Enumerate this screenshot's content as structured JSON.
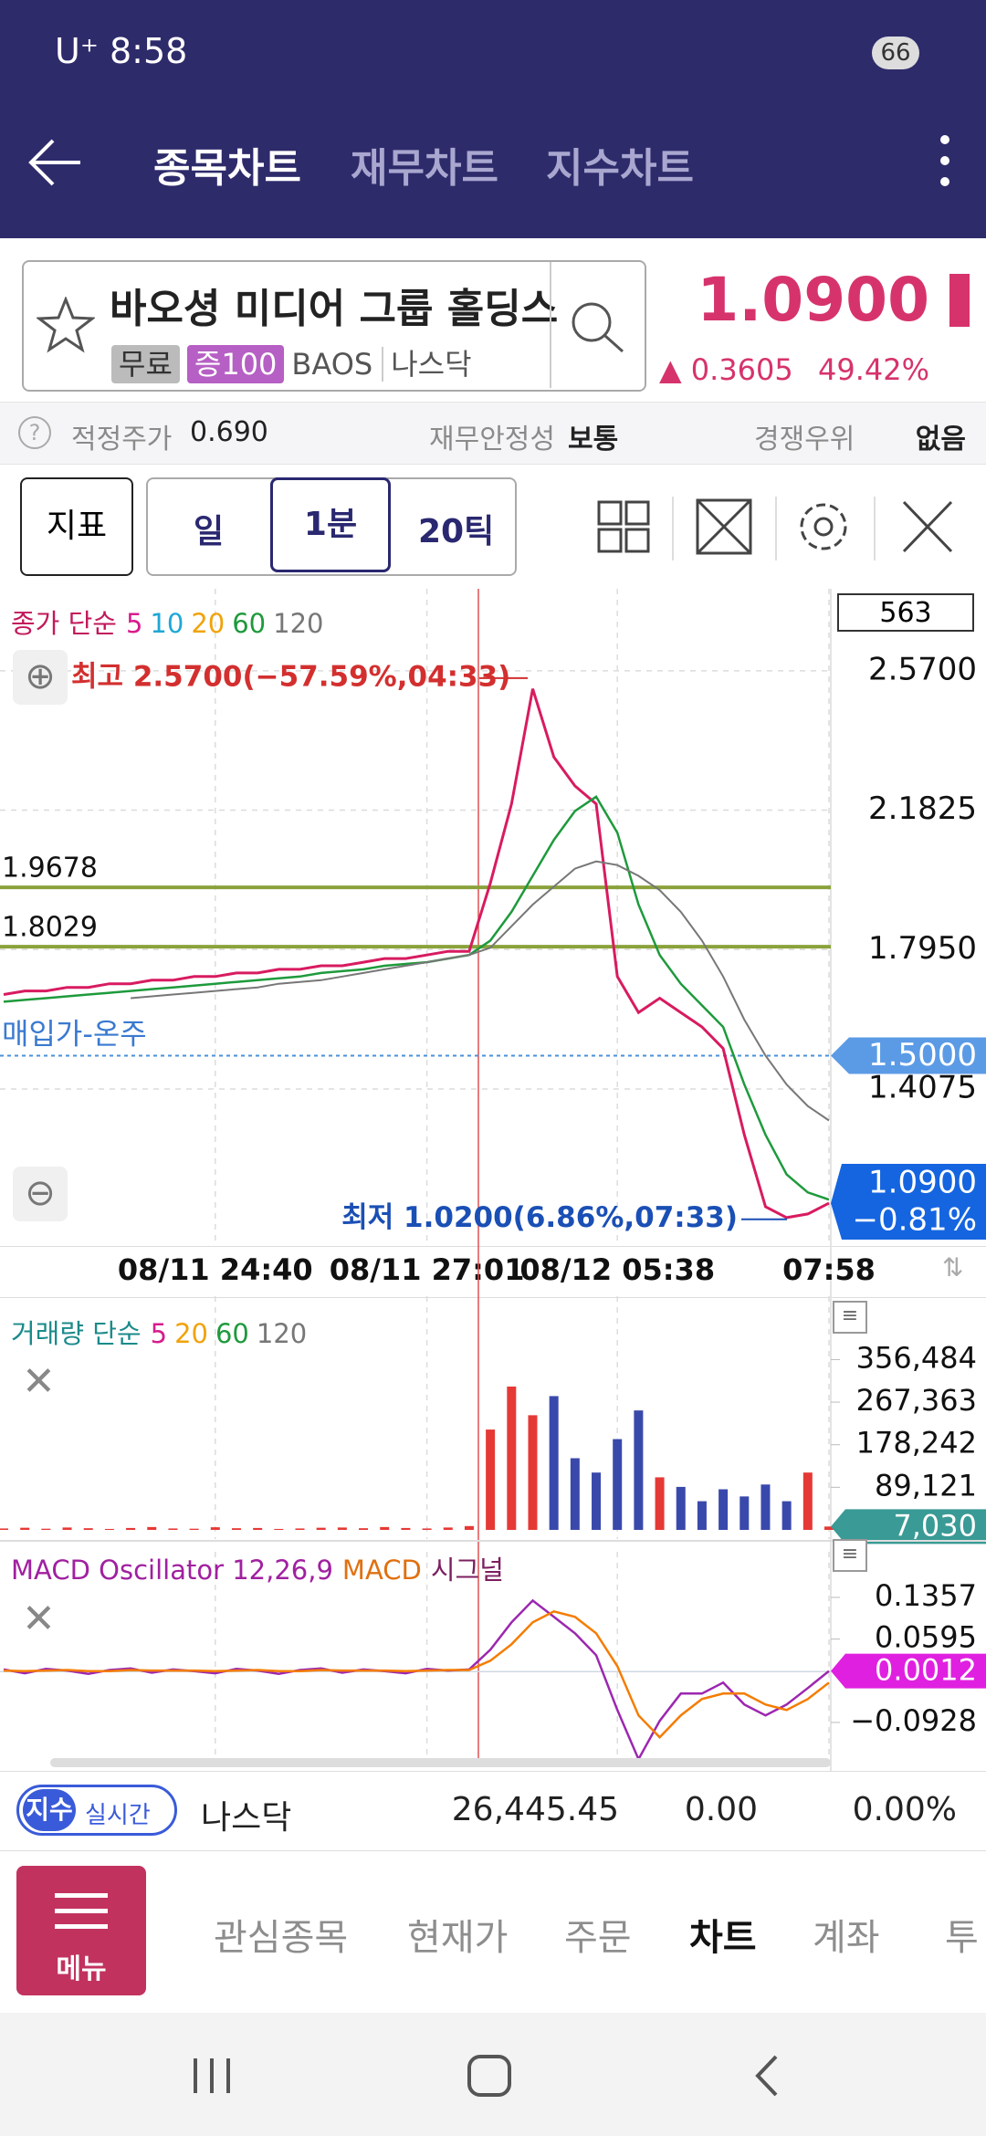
{
  "status_bar": {
    "carrier": "U⁺",
    "time": "8:58",
    "battery": "66"
  },
  "tabs": [
    "종목차트",
    "재무차트",
    "지수차트"
  ],
  "stock": {
    "name": "바오셩 미디어 그룹 홀딩스",
    "tags": [
      "무료",
      "증100"
    ],
    "ticker": "BAOS",
    "market": "나스닥",
    "price": "1.0900",
    "change": "0.3605",
    "change_percent": "49.42%"
  },
  "info": [
    {
      "label": "적정주가",
      "value": "0.690"
    },
    {
      "label": "재무안정성",
      "value": "보통"
    },
    {
      "label": "경쟁우위",
      "value": "없음"
    }
  ],
  "toolbar": {
    "indicator": "지표",
    "periods": [
      "일",
      "1분",
      "20틱"
    ]
  },
  "price_chart": {
    "type": "line",
    "legend_title": "종가 단순",
    "ma_periods": [
      {
        "label": "5",
        "color": "#d81b8c"
      },
      {
        "label": "10",
        "color": "#1ea7d6"
      },
      {
        "label": "20",
        "color": "#f0a30a"
      },
      {
        "label": "60",
        "color": "#1e9a3c"
      },
      {
        "label": "120",
        "color": "#777777"
      }
    ],
    "count_box": "563",
    "categories": [
      null,
      null,
      null,
      null,
      null,
      null,
      null,
      null,
      null,
      null,
      "08/11 24:40",
      null,
      null,
      null,
      null,
      null,
      null,
      null,
      null,
      null,
      "08/11 27:01",
      null,
      null,
      null,
      null,
      null,
      null,
      null,
      null,
      "08/12 05:38",
      null,
      null,
      null,
      null,
      null,
      null,
      null,
      null,
      null,
      "07:58"
    ],
    "ylim": [
      0.971,
      2.798
    ],
    "yticks": [
      {
        "value": 2.57,
        "label": "2.5700"
      },
      {
        "value": 2.1825,
        "label": "2.1825"
      },
      {
        "value": 1.795,
        "label": "1.7950"
      },
      {
        "value": 1.4075,
        "label": "1.4075"
      }
    ],
    "series": [
      {
        "color": "#d81b60",
        "values": [
          1.67,
          1.68,
          1.68,
          1.69,
          1.69,
          1.7,
          1.7,
          1.71,
          1.71,
          1.72,
          1.72,
          1.73,
          1.73,
          1.74,
          1.74,
          1.75,
          1.75,
          1.76,
          1.77,
          1.77,
          1.78,
          1.79,
          1.79,
          1.98,
          2.2,
          2.52,
          2.33,
          2.25,
          2.2,
          1.72,
          1.62,
          1.66,
          1.62,
          1.58,
          1.52,
          1.28,
          1.08,
          1.05,
          1.06,
          1.09
        ]
      },
      {
        "color": "#1e9a3c",
        "values": [
          1.65,
          1.655,
          1.66,
          1.665,
          1.67,
          1.675,
          1.68,
          1.685,
          1.69,
          1.695,
          1.7,
          1.705,
          1.71,
          1.715,
          1.72,
          1.73,
          1.735,
          1.74,
          1.75,
          1.755,
          1.76,
          1.77,
          1.78,
          1.82,
          1.9,
          2.0,
          2.1,
          2.18,
          2.22,
          2.12,
          1.92,
          1.78,
          1.7,
          1.64,
          1.58,
          1.42,
          1.28,
          1.17,
          1.12,
          1.1
        ]
      },
      {
        "color": "#777777",
        "values": [
          null,
          null,
          null,
          null,
          null,
          null,
          1.66,
          1.665,
          1.67,
          1.675,
          1.68,
          1.685,
          1.69,
          1.7,
          1.705,
          1.71,
          1.72,
          1.73,
          1.74,
          1.75,
          1.76,
          1.77,
          1.78,
          1.8,
          1.86,
          1.92,
          1.97,
          2.02,
          2.04,
          2.03,
          2.0,
          1.96,
          1.9,
          1.82,
          1.72,
          1.6,
          1.5,
          1.42,
          1.36,
          1.32
        ]
      }
    ],
    "levels": [
      1.9678,
      1.8029
    ],
    "level_color": "#8aa23a",
    "buy_line": {
      "label": "매입가-온주",
      "value": 1.5,
      "value_label": "1.5000"
    },
    "current": {
      "value": 1.09,
      "label": "1.0900",
      "change": "−0.81%"
    },
    "high": {
      "value": 2.57,
      "label": "최고 2.5700(−57.59%,04:33)"
    },
    "low": {
      "value": 1.02,
      "label": "최저 1.0200(6.86%,07:33)"
    },
    "grid": true
  },
  "volume_chart": {
    "type": "bar",
    "legend_title": "거래량 단순",
    "ma_periods": [
      {
        "label": "5",
        "color": "#d81b8c"
      },
      {
        "label": "20",
        "color": "#f0a30a"
      },
      {
        "label": "60",
        "color": "#1e9a3c"
      },
      {
        "label": "120",
        "color": "#777777"
      }
    ],
    "ylim": [
      0,
      470000
    ],
    "yticks": [
      {
        "value": 356484,
        "label": "356,484"
      },
      {
        "value": 267363,
        "label": "267,363"
      },
      {
        "value": 178242,
        "label": "178,242"
      },
      {
        "value": 89121,
        "label": "89,121"
      }
    ],
    "values": [
      3000,
      4500,
      2500,
      5000,
      3500,
      2000,
      4000,
      6000,
      3000,
      2500,
      5500,
      3500,
      4000,
      2000,
      3000,
      4500,
      5000,
      3500,
      6000,
      4000,
      3000,
      5000,
      8000,
      210000,
      300000,
      240000,
      280000,
      150000,
      120000,
      190000,
      250000,
      110000,
      90000,
      60000,
      85000,
      70000,
      95000,
      60000,
      120000,
      7030
    ],
    "last_label": "7,030",
    "up_color": "#e53935",
    "down_color": "#3949ab"
  },
  "macd_chart": {
    "type": "line",
    "title": "MACD Oscillator 12,26,9",
    "macd_label": "MACD",
    "signal_label": "시그널",
    "ylim": [
      -0.173,
      0.219
    ],
    "yticks": [
      0.1357,
      0.0595,
      {
        "value": -0.0928,
        "label": "−0.0928"
      }
    ],
    "series": [
      {
        "color": "#9c27b0",
        "values": [
          0.004,
          -0.003,
          0.005,
          0.002,
          -0.004,
          0.003,
          0.006,
          -0.002,
          0.004,
          0.001,
          -0.003,
          0.005,
          0.002,
          -0.004,
          0.003,
          0.006,
          -0.002,
          0.004,
          0.001,
          -0.003,
          0.005,
          0.002,
          0.004,
          0.04,
          0.09,
          0.13,
          0.1,
          0.07,
          0.03,
          -0.07,
          -0.16,
          -0.09,
          -0.04,
          -0.04,
          -0.02,
          -0.06,
          -0.08,
          -0.06,
          -0.03,
          0.0012
        ]
      },
      {
        "color": "#f57c00",
        "values": [
          0.002,
          0.001,
          0.002,
          0.003,
          0.001,
          0.001,
          0.003,
          0.002,
          0.002,
          0.002,
          0.001,
          0.002,
          0.003,
          0.001,
          0.001,
          0.003,
          0.002,
          0.002,
          0.002,
          0.001,
          0.002,
          0.003,
          0.003,
          0.02,
          0.05,
          0.09,
          0.11,
          0.1,
          0.07,
          0.01,
          -0.08,
          -0.12,
          -0.08,
          -0.05,
          -0.04,
          -0.04,
          -0.06,
          -0.07,
          -0.05,
          -0.02
        ]
      }
    ],
    "current": 0.0012
  },
  "index_bar": {
    "badge": "지수",
    "mode": "실시간",
    "name": "나스닥",
    "value": "26,445.45",
    "change": "0.00",
    "change_percent": "0.00%"
  },
  "nav": {
    "menu": "메뉴",
    "items": [
      "관심종목",
      "현재가",
      "주문",
      "차트",
      "계좌",
      "투"
    ]
  }
}
